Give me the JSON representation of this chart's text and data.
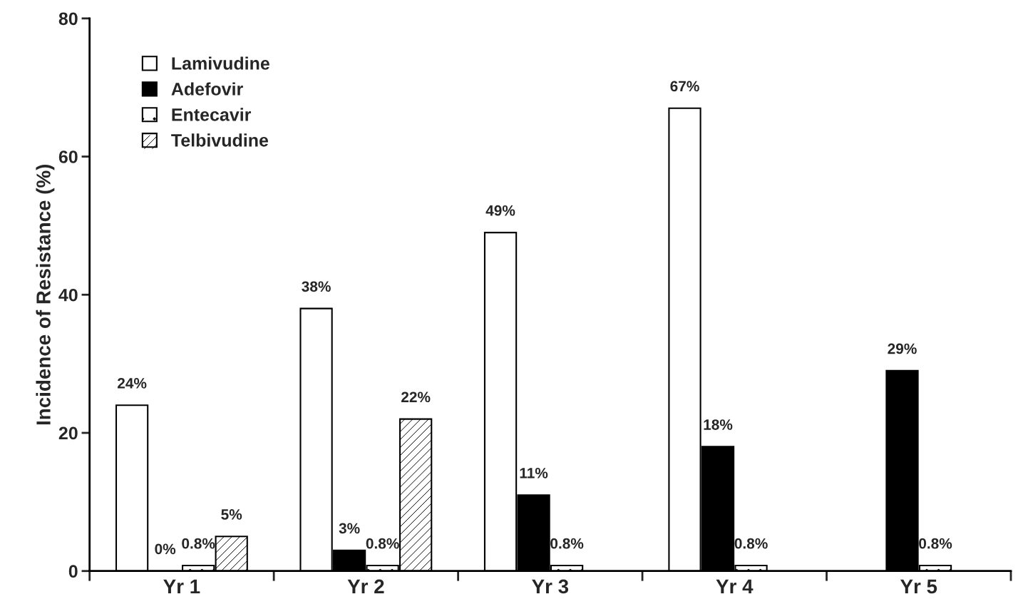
{
  "chart_data": {
    "type": "bar",
    "ylabel": "Incidence of Resistance (%)",
    "categories": [
      "Yr 1",
      "Yr 2",
      "Yr 3",
      "Yr 4",
      "Yr 5"
    ],
    "series": [
      {
        "name": "Lamivudine",
        "color": "#ffffff",
        "values": [
          24,
          38,
          49,
          67,
          null
        ],
        "value_labels": [
          "24%",
          "38%",
          "49%",
          "67%",
          null
        ]
      },
      {
        "name": "Adefovir",
        "color": "#000000",
        "values": [
          0,
          3,
          11,
          18,
          29
        ],
        "value_labels": [
          "0%",
          "3%",
          "11%",
          "18%",
          "29%"
        ]
      },
      {
        "name": "Entecavir",
        "color": "#ffffff",
        "values": [
          0.8,
          0.8,
          0.8,
          0.8,
          0.8
        ],
        "value_labels": [
          "0.8%",
          "0.8%",
          "0.8%",
          "0.8%",
          "0.8%"
        ]
      },
      {
        "name": "Telbivudine",
        "color": "#ffffff",
        "values": [
          5,
          22,
          null,
          null,
          null
        ],
        "value_labels": [
          "5%",
          "22%",
          null,
          null,
          null
        ]
      }
    ],
    "ylim": [
      0,
      80
    ],
    "yticks": [
      0,
      20,
      40,
      60,
      80
    ],
    "grid": false,
    "legend": "top left"
  }
}
